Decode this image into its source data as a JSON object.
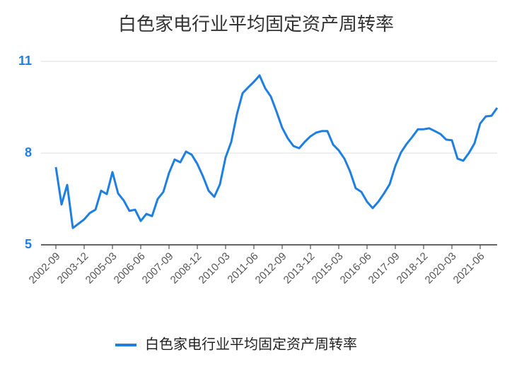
{
  "chart_data": {
    "type": "line",
    "title": "白色家电行业平均固定资产周转率",
    "categories": [
      "2002-09",
      null,
      null,
      null,
      null,
      "2003-12",
      null,
      null,
      null,
      null,
      "2005-03",
      null,
      null,
      null,
      null,
      "2006-06",
      null,
      null,
      null,
      null,
      "2007-09",
      null,
      null,
      null,
      null,
      "2008-12",
      null,
      null,
      null,
      null,
      "2010-03",
      null,
      null,
      null,
      null,
      "2011-06",
      null,
      null,
      null,
      null,
      "2012-09",
      null,
      null,
      null,
      null,
      "2013-12",
      null,
      null,
      null,
      null,
      "2015-03",
      null,
      null,
      null,
      null,
      "2016-06",
      null,
      null,
      null,
      null,
      "2017-09",
      null,
      null,
      null,
      null,
      "2018-12",
      null,
      null,
      null,
      null,
      "2020-03",
      null,
      null,
      null,
      null,
      "2021-06",
      null,
      null,
      null
    ],
    "series": [
      {
        "name": "白色家电行业平均固定资产周转率",
        "color": "#1f7fe0",
        "values": [
          7.54,
          6.32,
          6.96,
          5.55,
          5.69,
          5.83,
          6.04,
          6.15,
          6.77,
          6.66,
          7.38,
          6.68,
          6.45,
          6.11,
          6.15,
          5.78,
          6.01,
          5.94,
          6.5,
          6.73,
          7.35,
          7.79,
          7.7,
          8.05,
          7.95,
          7.65,
          7.24,
          6.77,
          6.57,
          6.98,
          7.86,
          8.37,
          9.27,
          9.96,
          10.15,
          10.33,
          10.54,
          10.12,
          9.85,
          9.36,
          8.83,
          8.48,
          8.23,
          8.16,
          8.37,
          8.55,
          8.67,
          8.72,
          8.72,
          8.28,
          8.09,
          7.82,
          7.4,
          6.85,
          6.73,
          6.41,
          6.2,
          6.41,
          6.68,
          6.98,
          7.58,
          8.02,
          8.3,
          8.53,
          8.78,
          8.78,
          8.81,
          8.72,
          8.62,
          8.44,
          8.42,
          7.82,
          7.75,
          8.0,
          8.32,
          8.97,
          9.2,
          9.22,
          9.48
        ]
      }
    ],
    "ylim": [
      5,
      11
    ],
    "yticks": [
      5,
      8,
      11
    ],
    "grid": true,
    "legend": "bottom"
  }
}
